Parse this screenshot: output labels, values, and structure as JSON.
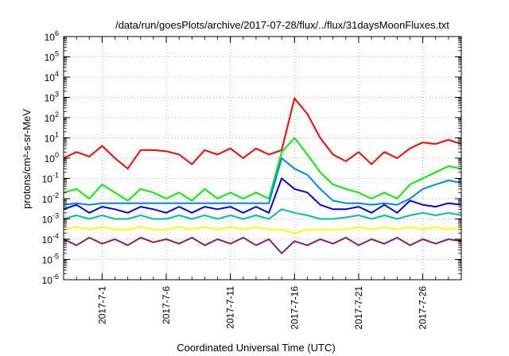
{
  "chart_data": {
    "type": "line",
    "title": "/data/run/goesPlots/archive/2017-07-28/flux/../flux/31daysMoonFluxes.txt",
    "xlabel": "Coordinated Universal Time (UTC)",
    "ylabel": "protons/cm²-s-sr-MeV",
    "y_scale": "log",
    "ylim": [
      1e-06,
      1000000.0
    ],
    "y_ticks": [
      {
        "value": 1e-06,
        "base": "10",
        "exp": "-6"
      },
      {
        "value": 1e-05,
        "base": "10",
        "exp": "-5"
      },
      {
        "value": 0.0001,
        "base": "10",
        "exp": "-4"
      },
      {
        "value": 0.001,
        "base": "10",
        "exp": "-3"
      },
      {
        "value": 0.01,
        "base": "10",
        "exp": "-2"
      },
      {
        "value": 0.1,
        "base": "10",
        "exp": "-1"
      },
      {
        "value": 1,
        "base": "10",
        "exp": "0"
      },
      {
        "value": 10,
        "base": "10",
        "exp": "1"
      },
      {
        "value": 100,
        "base": "10",
        "exp": "2"
      },
      {
        "value": 1000,
        "base": "10",
        "exp": "3"
      },
      {
        "value": 10000,
        "base": "10",
        "exp": "4"
      },
      {
        "value": 100000,
        "base": "10",
        "exp": "5"
      },
      {
        "value": 1000000,
        "base": "10",
        "exp": "6"
      }
    ],
    "xlim": [
      "2017-06-28",
      "2017-07-29"
    ],
    "x_ticks": [
      "2017-7-1",
      "2017-7-6",
      "2017-7-11",
      "2017-7-16",
      "2017-7-21",
      "2017-7-26"
    ],
    "x_tick_dates": [
      "2017-07-01",
      "2017-07-06",
      "2017-07-11",
      "2017-07-16",
      "2017-07-21",
      "2017-07-26"
    ],
    "grid": true,
    "series": [
      {
        "color": "#ff0000",
        "x": [
          "2017-06-28",
          "2017-06-29",
          "2017-06-30",
          "2017-07-01",
          "2017-07-02",
          "2017-07-03",
          "2017-07-04",
          "2017-07-05",
          "2017-07-06",
          "2017-07-07",
          "2017-07-08",
          "2017-07-09",
          "2017-07-10",
          "2017-07-11",
          "2017-07-12",
          "2017-07-13",
          "2017-07-14",
          "2017-07-15",
          "2017-07-16",
          "2017-07-17",
          "2017-07-18",
          "2017-07-19",
          "2017-07-20",
          "2017-07-21",
          "2017-07-22",
          "2017-07-23",
          "2017-07-24",
          "2017-07-25",
          "2017-07-26",
          "2017-07-27",
          "2017-07-28",
          "2017-07-29"
        ],
        "values": [
          1.0,
          2.0,
          1.2,
          4.0,
          1.0,
          0.3,
          2.5,
          2.5,
          2.2,
          1.5,
          0.5,
          2.5,
          1.5,
          3.0,
          1.0,
          3.0,
          1.5,
          2.5,
          900,
          150,
          10,
          1.5,
          0.7,
          2.0,
          0.5,
          2.0,
          1.0,
          3.0,
          6.0,
          5.0,
          8.0,
          5.0
        ]
      },
      {
        "color": "#00ee00",
        "x": [
          "2017-06-28",
          "2017-06-29",
          "2017-06-30",
          "2017-07-01",
          "2017-07-02",
          "2017-07-03",
          "2017-07-04",
          "2017-07-05",
          "2017-07-06",
          "2017-07-07",
          "2017-07-08",
          "2017-07-09",
          "2017-07-10",
          "2017-07-11",
          "2017-07-12",
          "2017-07-13",
          "2017-07-14",
          "2017-07-15",
          "2017-07-16",
          "2017-07-17",
          "2017-07-18",
          "2017-07-19",
          "2017-07-20",
          "2017-07-21",
          "2017-07-22",
          "2017-07-23",
          "2017-07-24",
          "2017-07-25",
          "2017-07-26",
          "2017-07-27",
          "2017-07-28",
          "2017-07-29"
        ],
        "values": [
          0.02,
          0.03,
          0.01,
          0.05,
          0.02,
          0.008,
          0.03,
          0.02,
          0.01,
          0.02,
          0.008,
          0.03,
          0.01,
          0.02,
          0.01,
          0.02,
          0.01,
          2.0,
          10.0,
          1.5,
          0.2,
          0.05,
          0.03,
          0.02,
          0.01,
          0.02,
          0.01,
          0.05,
          0.1,
          0.2,
          0.4,
          0.3
        ]
      },
      {
        "color": "#0080ff",
        "x": [
          "2017-06-28",
          "2017-06-29",
          "2017-06-30",
          "2017-07-01",
          "2017-07-02",
          "2017-07-03",
          "2017-07-04",
          "2017-07-05",
          "2017-07-06",
          "2017-07-07",
          "2017-07-08",
          "2017-07-09",
          "2017-07-10",
          "2017-07-11",
          "2017-07-12",
          "2017-07-13",
          "2017-07-14",
          "2017-07-15",
          "2017-07-16",
          "2017-07-17",
          "2017-07-18",
          "2017-07-19",
          "2017-07-20",
          "2017-07-21",
          "2017-07-22",
          "2017-07-23",
          "2017-07-24",
          "2017-07-25",
          "2017-07-26",
          "2017-07-27",
          "2017-07-28",
          "2017-07-29"
        ],
        "values": [
          0.005,
          0.006,
          0.005,
          0.006,
          0.006,
          0.006,
          0.006,
          0.006,
          0.006,
          0.006,
          0.006,
          0.006,
          0.006,
          0.006,
          0.006,
          0.006,
          0.006,
          1.0,
          0.3,
          0.15,
          0.03,
          0.008,
          0.006,
          0.006,
          0.005,
          0.006,
          0.005,
          0.01,
          0.03,
          0.05,
          0.08,
          0.06
        ]
      },
      {
        "color": "#0000ee",
        "x": [
          "2017-06-28",
          "2017-06-29",
          "2017-06-30",
          "2017-07-01",
          "2017-07-02",
          "2017-07-03",
          "2017-07-04",
          "2017-07-05",
          "2017-07-06",
          "2017-07-07",
          "2017-07-08",
          "2017-07-09",
          "2017-07-10",
          "2017-07-11",
          "2017-07-12",
          "2017-07-13",
          "2017-07-14",
          "2017-07-15",
          "2017-07-16",
          "2017-07-17",
          "2017-07-18",
          "2017-07-19",
          "2017-07-20",
          "2017-07-21",
          "2017-07-22",
          "2017-07-23",
          "2017-07-24",
          "2017-07-25",
          "2017-07-26",
          "2017-07-27",
          "2017-07-28",
          "2017-07-29"
        ],
        "values": [
          0.003,
          0.005,
          0.002,
          0.004,
          0.003,
          0.002,
          0.004,
          0.003,
          0.002,
          0.004,
          0.002,
          0.004,
          0.003,
          0.004,
          0.002,
          0.004,
          0.002,
          0.1,
          0.03,
          0.02,
          0.005,
          0.003,
          0.003,
          0.004,
          0.002,
          0.005,
          0.002,
          0.008,
          0.005,
          0.004,
          0.006,
          0.005
        ]
      },
      {
        "color": "#00c0a0",
        "x": [
          "2017-06-28",
          "2017-06-29",
          "2017-06-30",
          "2017-07-01",
          "2017-07-02",
          "2017-07-03",
          "2017-07-04",
          "2017-07-05",
          "2017-07-06",
          "2017-07-07",
          "2017-07-08",
          "2017-07-09",
          "2017-07-10",
          "2017-07-11",
          "2017-07-12",
          "2017-07-13",
          "2017-07-14",
          "2017-07-15",
          "2017-07-16",
          "2017-07-17",
          "2017-07-18",
          "2017-07-19",
          "2017-07-20",
          "2017-07-21",
          "2017-07-22",
          "2017-07-23",
          "2017-07-24",
          "2017-07-25",
          "2017-07-26",
          "2017-07-27",
          "2017-07-28",
          "2017-07-29"
        ],
        "values": [
          0.001,
          0.0015,
          0.001,
          0.0015,
          0.001,
          0.001,
          0.0015,
          0.001,
          0.001,
          0.0015,
          0.001,
          0.0015,
          0.001,
          0.0015,
          0.001,
          0.0015,
          0.001,
          0.003,
          0.002,
          0.0015,
          0.001,
          0.001,
          0.0012,
          0.0015,
          0.001,
          0.0015,
          0.001,
          0.0015,
          0.002,
          0.0015,
          0.002,
          0.0015
        ]
      },
      {
        "color": "#ffff00",
        "x": [
          "2017-06-28",
          "2017-06-29",
          "2017-06-30",
          "2017-07-01",
          "2017-07-02",
          "2017-07-03",
          "2017-07-04",
          "2017-07-05",
          "2017-07-06",
          "2017-07-07",
          "2017-07-08",
          "2017-07-09",
          "2017-07-10",
          "2017-07-11",
          "2017-07-12",
          "2017-07-13",
          "2017-07-14",
          "2017-07-15",
          "2017-07-16",
          "2017-07-17",
          "2017-07-18",
          "2017-07-19",
          "2017-07-20",
          "2017-07-21",
          "2017-07-22",
          "2017-07-23",
          "2017-07-24",
          "2017-07-25",
          "2017-07-26",
          "2017-07-27",
          "2017-07-28",
          "2017-07-29"
        ],
        "values": [
          0.0003,
          0.0004,
          0.0003,
          0.0004,
          0.0003,
          0.0003,
          0.0004,
          0.0003,
          0.0003,
          0.0004,
          0.0003,
          0.0004,
          0.0003,
          0.0004,
          0.0003,
          0.0004,
          0.0003,
          0.0003,
          0.0002,
          0.0003,
          0.0003,
          0.0003,
          0.0003,
          0.0004,
          0.0003,
          0.0004,
          0.0003,
          0.0004,
          0.0003,
          0.0004,
          0.0003,
          0.0004
        ]
      },
      {
        "color": "#8b2252",
        "x": [
          "2017-06-28",
          "2017-06-29",
          "2017-06-30",
          "2017-07-01",
          "2017-07-02",
          "2017-07-03",
          "2017-07-04",
          "2017-07-05",
          "2017-07-06",
          "2017-07-07",
          "2017-07-08",
          "2017-07-09",
          "2017-07-10",
          "2017-07-11",
          "2017-07-12",
          "2017-07-13",
          "2017-07-14",
          "2017-07-15",
          "2017-07-16",
          "2017-07-17",
          "2017-07-18",
          "2017-07-19",
          "2017-07-20",
          "2017-07-21",
          "2017-07-22",
          "2017-07-23",
          "2017-07-24",
          "2017-07-25",
          "2017-07-26",
          "2017-07-27",
          "2017-07-28",
          "2017-07-29"
        ],
        "values": [
          0.0001,
          5e-05,
          0.00012,
          6e-05,
          0.0001,
          5e-05,
          0.00012,
          7e-05,
          0.0001,
          6e-05,
          0.00012,
          5e-05,
          0.0001,
          6e-05,
          0.00012,
          5e-05,
          0.0001,
          2e-05,
          8e-05,
          5e-05,
          0.0001,
          6e-05,
          0.00012,
          5e-05,
          0.0001,
          6e-05,
          0.00012,
          5e-05,
          0.0001,
          6e-05,
          0.0001,
          8e-05
        ]
      }
    ]
  }
}
